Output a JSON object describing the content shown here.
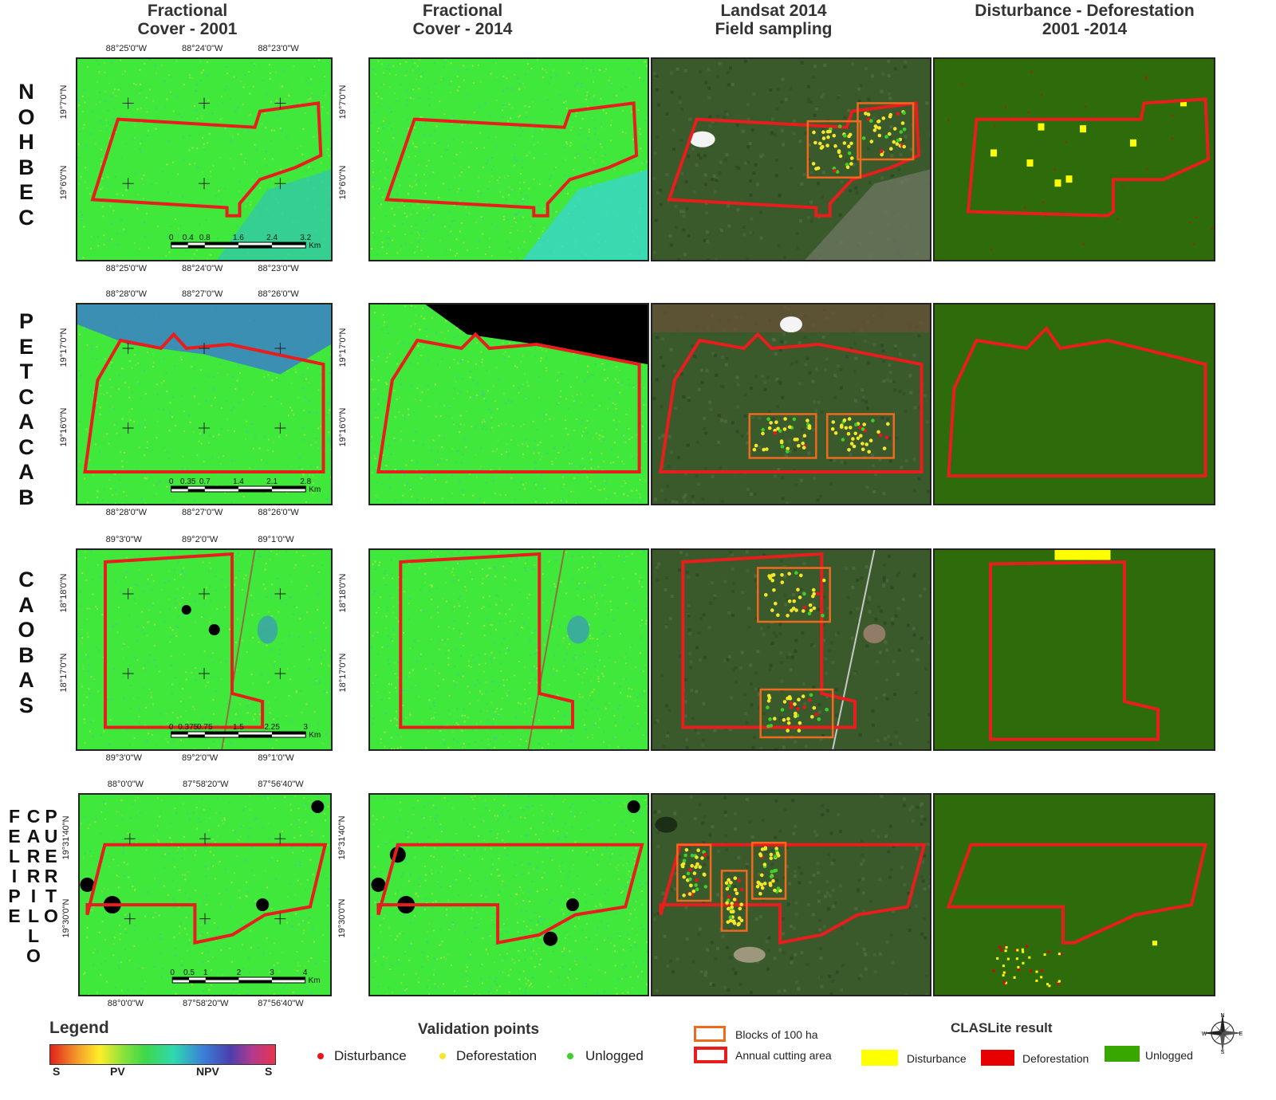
{
  "columns": [
    {
      "title": "Fractional\nCover - 2001"
    },
    {
      "title": "Fractional\nCover - 2014"
    },
    {
      "title": "Landsat 2014\nField sampling"
    },
    {
      "title": "Disturbance - Deforestation\n2001 -2014"
    }
  ],
  "sites": [
    {
      "name": "NOHBEC",
      "letters": [
        "N",
        "O",
        "H",
        "B",
        "E",
        "C"
      ],
      "top_coords": [
        "88°25'0\"W",
        "88°24'0\"W",
        "88°23'0\"W"
      ],
      "bottom_coords": [
        "88°25'0\"W",
        "88°24'0\"W",
        "88°23'0\"W"
      ],
      "left_coords": [
        "19°7'0\"N",
        "19°6'0\"N"
      ],
      "right_coords": [
        "19°7'0\"N",
        "19°6'0\"N"
      ],
      "scale": {
        "ticks": [
          "0",
          "0.4",
          "0.8",
          "1.6",
          "2.4",
          "3.2"
        ],
        "unit": "Km"
      }
    },
    {
      "name": "PETCACAB",
      "letters": [
        "P",
        "E",
        "T",
        "C",
        "A",
        "C",
        "A",
        "B"
      ],
      "top_coords": [
        "88°28'0\"W",
        "88°27'0\"W",
        "88°26'0\"W"
      ],
      "bottom_coords": [
        "88°28'0\"W",
        "88°27'0\"W",
        "88°26'0\"W"
      ],
      "left_coords": [
        "19°17'0\"N",
        "19°16'0\"N"
      ],
      "right_coords": [
        "19°17'0\"N",
        "19°16'0\"N"
      ],
      "scale": {
        "ticks": [
          "0",
          "0.35",
          "0.7",
          "1.4",
          "2.1",
          "2.8"
        ],
        "unit": "Km"
      }
    },
    {
      "name": "CAOBAS",
      "letters": [
        "C",
        "A",
        "O",
        "B",
        "A",
        "S"
      ],
      "top_coords": [
        "89°3'0\"W",
        "89°2'0\"W",
        "89°1'0\"W"
      ],
      "bottom_coords": [
        "89°3'0\"W",
        "89°2'0\"W",
        "89°1'0\"W"
      ],
      "left_coords": [
        "18°18'0\"N",
        "18°17'0\"N"
      ],
      "right_coords": [
        "18°18'0\"N",
        "18°17'0\"N"
      ],
      "scale": {
        "ticks": [
          "0",
          "0.375",
          "0.75",
          "1.5",
          "2.25",
          "3"
        ],
        "unit": "Km"
      }
    },
    {
      "name": "FELIPE CARRILLO PUERTO",
      "word_columns": [
        [
          "F",
          "E",
          "L",
          "I",
          "P",
          "E"
        ],
        [
          "C",
          "A",
          "R",
          "R",
          "I",
          "L",
          "L",
          "O"
        ],
        [
          "P",
          "U",
          "E",
          "R",
          "T",
          "O"
        ]
      ],
      "top_coords": [
        "88°0'0\"W",
        "87°58'20\"W",
        "87°56'40\"W"
      ],
      "bottom_coords": [
        "88°0'0\"W",
        "87°58'20\"W",
        "87°56'40\"W"
      ],
      "left_coords": [
        "19°31'40\"N",
        "19°30'0\"N"
      ],
      "right_coords": [
        "19°31'40\"N",
        "19°30'0\"N"
      ],
      "scale": {
        "ticks": [
          "0",
          "0.5",
          "1",
          "2",
          "3",
          "4"
        ],
        "unit": "Km"
      }
    }
  ],
  "legend": {
    "title": "Legend",
    "ramp_labels": [
      "S",
      "PV",
      "NPV",
      "S"
    ],
    "validation": {
      "title": "Validation points",
      "items": [
        {
          "label": "Disturbance",
          "color": "#e8161b"
        },
        {
          "label": "Deforestation",
          "color": "#f5e62a"
        },
        {
          "label": "Unlogged",
          "color": "#3ecf2a"
        }
      ]
    },
    "areas": [
      {
        "label": "Blocks of 100 ha",
        "color": "#ee6a1f"
      },
      {
        "label": "Annual cutting area",
        "color": "#e81d1d"
      }
    ],
    "claslite": {
      "title": "CLASLite result",
      "items": [
        {
          "label": "Disturbance",
          "color": "#ffff00"
        },
        {
          "label": "Deforestation",
          "color": "#e60000"
        },
        {
          "label": "Unlogged",
          "color": "#38a800"
        }
      ]
    },
    "compass": [
      "N",
      "E",
      "S",
      "W"
    ]
  },
  "colors": {
    "fc_green": "#3fe83a",
    "landsat_forest": "#3a5a2c",
    "claslite_bg": "#2e6b0a",
    "boundary": "#e81d1d",
    "block": "#ee6a1f"
  }
}
